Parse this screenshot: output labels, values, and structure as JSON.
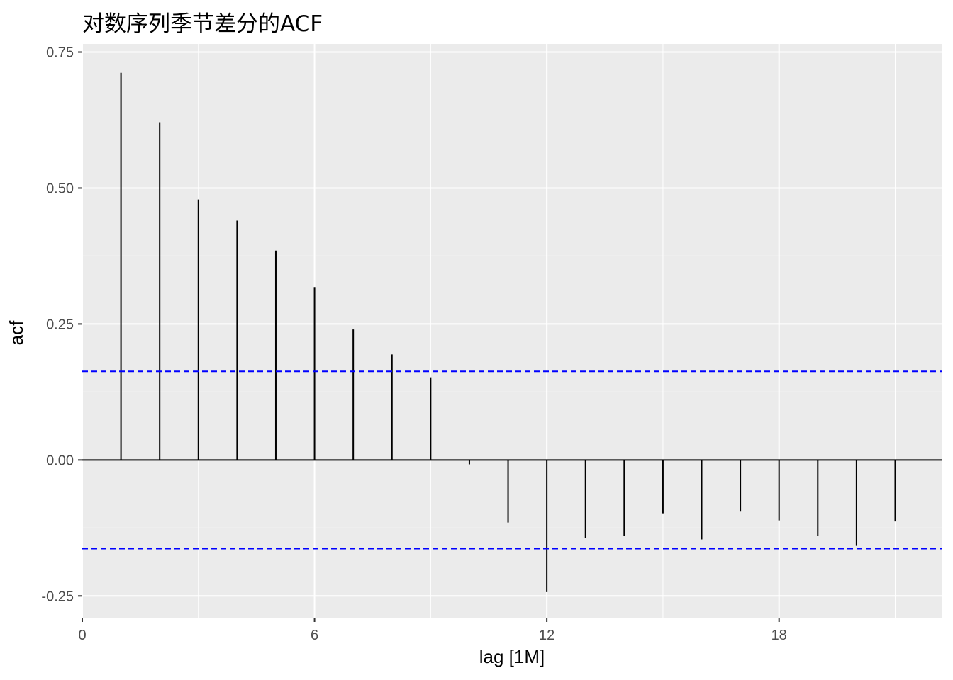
{
  "chart_data": {
    "type": "bar",
    "title": "对数序列季节差分的ACF",
    "xlabel": "lag [1M]",
    "ylabel": "acf",
    "x": [
      1,
      2,
      3,
      4,
      5,
      6,
      7,
      8,
      9,
      10,
      11,
      12,
      13,
      14,
      15,
      16,
      17,
      18,
      19,
      20,
      21
    ],
    "values": [
      0.712,
      0.621,
      0.479,
      0.44,
      0.385,
      0.318,
      0.24,
      0.194,
      0.152,
      -0.008,
      -0.115,
      -0.243,
      -0.143,
      -0.14,
      -0.098,
      -0.146,
      -0.095,
      -0.111,
      -0.14,
      -0.158,
      -0.113
    ],
    "confidence_bounds": [
      0.163,
      -0.163
    ],
    "xlim": [
      0,
      22.2
    ],
    "ylim": [
      -0.29,
      0.765
    ],
    "x_ticks": [
      0,
      6,
      12,
      18
    ],
    "x_tick_labels": [
      "0",
      "6",
      "12",
      "18"
    ],
    "y_ticks": [
      -0.25,
      0,
      0.25,
      0.5,
      0.75
    ],
    "y_tick_labels": [
      "-0.25",
      "0.00",
      "0.25",
      "0.50",
      "0.75"
    ],
    "grid": true,
    "colors": {
      "panel_background": "#ebebeb",
      "grid": "#ffffff",
      "bars": "#000000",
      "confidence_lines": "#0000ff",
      "zero_line": "#000000"
    }
  }
}
